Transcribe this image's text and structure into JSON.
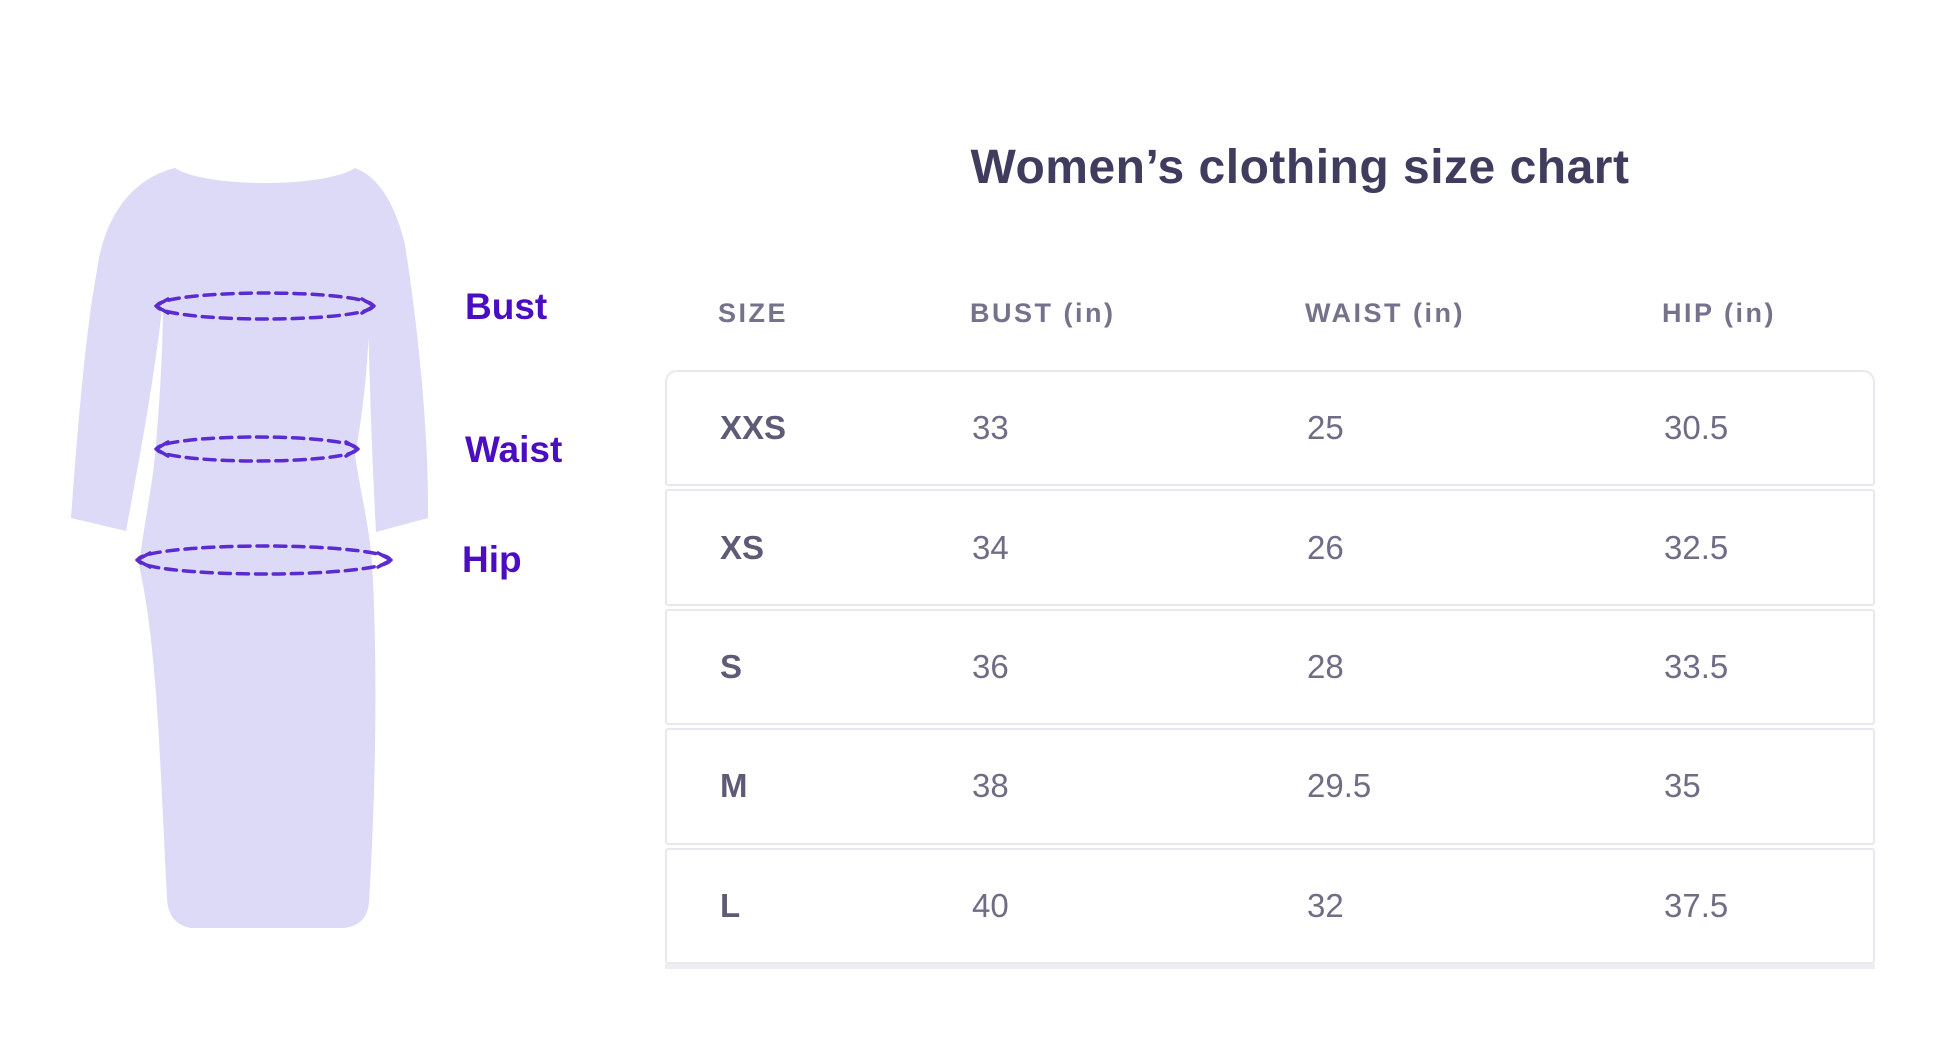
{
  "title": "Women’s clothing size chart",
  "figure": {
    "type": "dress-measurement-diagram",
    "labels": {
      "bust": "Bust",
      "waist": "Waist",
      "hip": "Hip"
    },
    "colors": {
      "dress_fill": "#dcdaf6",
      "measurement_line": "#5b2ad1",
      "label_text": "#4a0dc2"
    }
  },
  "chart_data": {
    "type": "table",
    "title": "Women’s clothing size chart",
    "columns": [
      "SIZE",
      "BUST (in)",
      "WAIST (in)",
      "HIP (in)"
    ],
    "rows": [
      [
        "XXS",
        "33",
        "25",
        "30.5"
      ],
      [
        "XS",
        "34",
        "26",
        "32.5"
      ],
      [
        "S",
        "36",
        "28",
        "33.5"
      ],
      [
        "M",
        "38",
        "29.5",
        "35"
      ],
      [
        "L",
        "40",
        "32",
        "37.5"
      ]
    ]
  },
  "colors": {
    "title": "#3f3c5e",
    "header_text": "#75728c",
    "size_text": "#5e5b76",
    "value_text": "#6f6c85",
    "row_border": "#e9e8ee"
  }
}
